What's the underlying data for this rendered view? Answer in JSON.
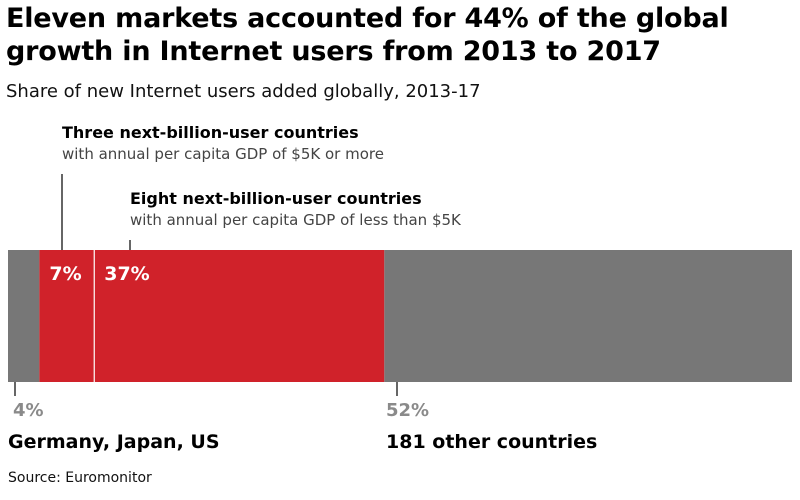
{
  "header": {
    "title": "Eleven markets accounted for 44% of the global growth in Internet users from 2013 to 2017",
    "subtitle": "Share of new Internet users added globally, 2013-17"
  },
  "annotations": {
    "three": {
      "head": "Three next-billion-user countries",
      "sub": "with annual per capita GDP of $5K or more"
    },
    "eight": {
      "head": "Eight next-billion-user countries",
      "sub": "with annual per capita GDP of less than $5K"
    }
  },
  "labels": {
    "germany_pct": "4%",
    "germany_name": "Germany, Japan, US",
    "other_pct": "52%",
    "other_name": "181 other countries"
  },
  "source": "Source: Euromonitor",
  "colors": {
    "grey": "#777777",
    "red": "#d0222a",
    "label_grey": "#8a8a8a"
  },
  "chart_data": {
    "type": "bar",
    "orientation": "horizontal-stacked",
    "title": "Eleven markets accounted for 44% of the global growth in Internet users from 2013 to 2017",
    "subtitle": "Share of new Internet users added globally, 2013-17",
    "categories": [
      "Germany, Japan, US",
      "Three next-billion-user countries",
      "Eight next-billion-user countries",
      "181 other countries"
    ],
    "values": [
      4,
      7,
      37,
      52
    ],
    "value_labels": [
      "4%",
      "7%",
      "37%",
      "52%"
    ],
    "segment_colors": [
      "#777777",
      "#d0222a",
      "#d0222a",
      "#777777"
    ],
    "xlim": [
      0,
      100
    ],
    "xlabel": "",
    "ylabel": "",
    "grid": false,
    "legend": "none"
  }
}
